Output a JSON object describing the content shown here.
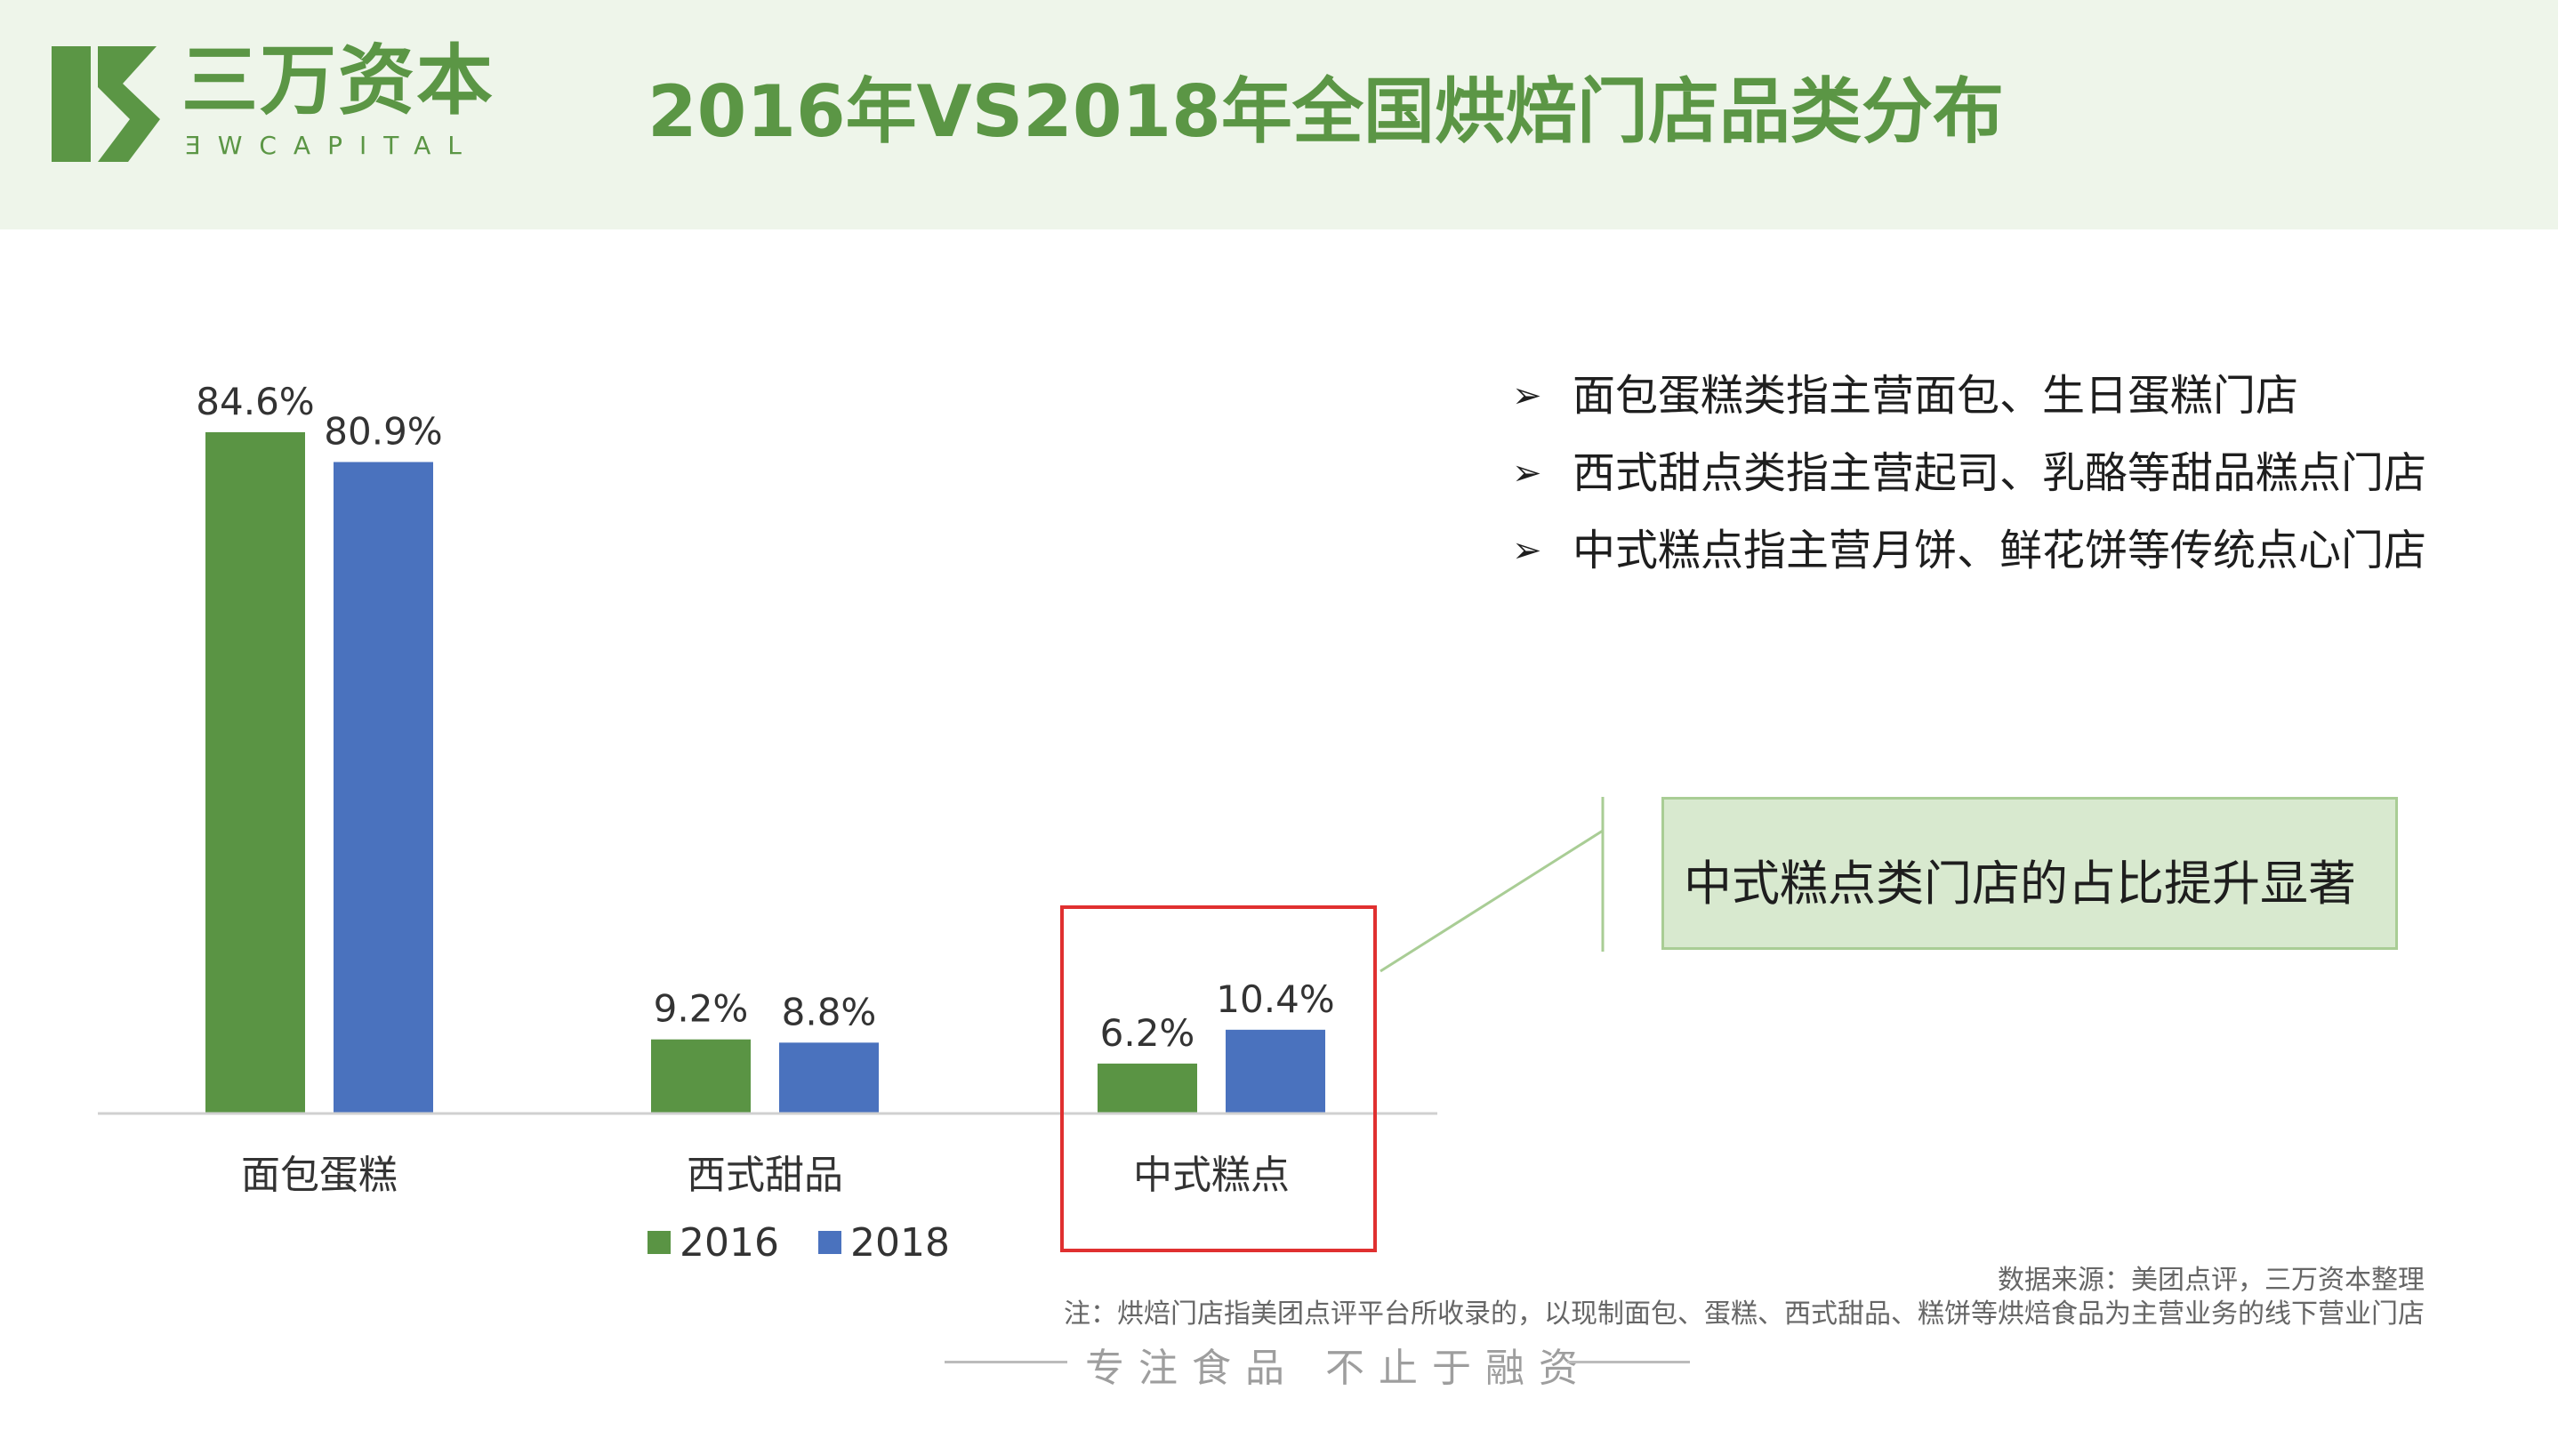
{
  "brand": {
    "name_cn": "三万资本",
    "name_en": "ƎWCAPITAL",
    "color": "#5b9645"
  },
  "page_title": "2016年VS2018年全国烘焙门店品类分布",
  "notes": [
    "面包蛋糕类指主营面包、生日蛋糕门店",
    "西式甜点类指主营起司、乳酪等甜品糕点门店",
    "中式糕点指主营月饼、鲜花饼等传统点心门店"
  ],
  "callout": "中式糕点类门店的占比提升显著",
  "source": "数据来源：美团点评，三万资本整理",
  "footnote": "注：烘焙门店指美团点评平台所收录的，以现制面包、蛋糕、西式甜品、糕饼等烘焙食品为主营业务的线下营业门店",
  "slogan": "专注食品 不止于融资",
  "colors": {
    "series_2016": "#5a9444",
    "series_2018": "#4a72be",
    "highlight": "#e03030"
  },
  "chart_data": {
    "type": "bar",
    "categories": [
      "面包蛋糕",
      "西式甜品",
      "中式糕点"
    ],
    "series": [
      {
        "name": "2016",
        "values": [
          84.6,
          9.2,
          6.2
        ],
        "labels": [
          "84.6%",
          "9.2%",
          "6.2%"
        ]
      },
      {
        "name": "2018",
        "values": [
          80.9,
          8.8,
          10.4
        ],
        "labels": [
          "80.9%",
          "8.8%",
          "10.4%"
        ]
      }
    ],
    "unit": "%",
    "ylim": [
      0,
      84.6
    ],
    "grid": false,
    "legend_position": "bottom",
    "highlighted_category": "中式糕点"
  }
}
